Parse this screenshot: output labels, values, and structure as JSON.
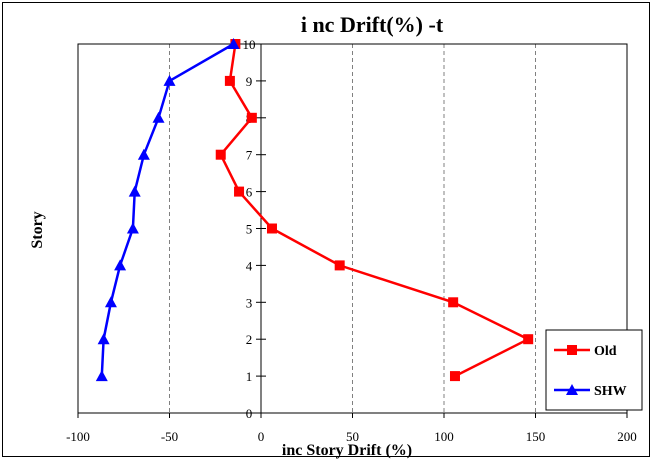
{
  "chart_data": {
    "type": "line",
    "title": "i nc Drift(%) -t",
    "xlabel": "inc Story Drift (%)",
    "ylabel": "Story",
    "xlim": [
      -100,
      200
    ],
    "ylim": [
      0,
      10
    ],
    "xticks": [
      -100,
      -50,
      0,
      50,
      100,
      150,
      200
    ],
    "yticks": [
      0,
      1,
      2,
      3,
      4,
      5,
      6,
      7,
      8,
      9,
      10
    ],
    "grid": "vertical dashed",
    "legend_position": "bottom-right",
    "series": [
      {
        "name": "Old",
        "color": "#ff0000",
        "marker": "square",
        "points": [
          [
            106,
            1
          ],
          [
            146,
            2
          ],
          [
            105,
            3
          ],
          [
            43,
            4
          ],
          [
            6,
            5
          ],
          [
            -12,
            6
          ],
          [
            -22,
            7
          ],
          [
            -5,
            8
          ],
          [
            -17,
            9
          ],
          [
            -14,
            10
          ]
        ]
      },
      {
        "name": "SHW",
        "color": "#0000ff",
        "marker": "triangle",
        "points": [
          [
            -87,
            1
          ],
          [
            -86,
            2
          ],
          [
            -82,
            3
          ],
          [
            -77,
            4
          ],
          [
            -70,
            5
          ],
          [
            -69,
            6
          ],
          [
            -64,
            7
          ],
          [
            -56,
            8
          ],
          [
            -50,
            9
          ],
          [
            -15,
            10
          ]
        ]
      }
    ]
  }
}
